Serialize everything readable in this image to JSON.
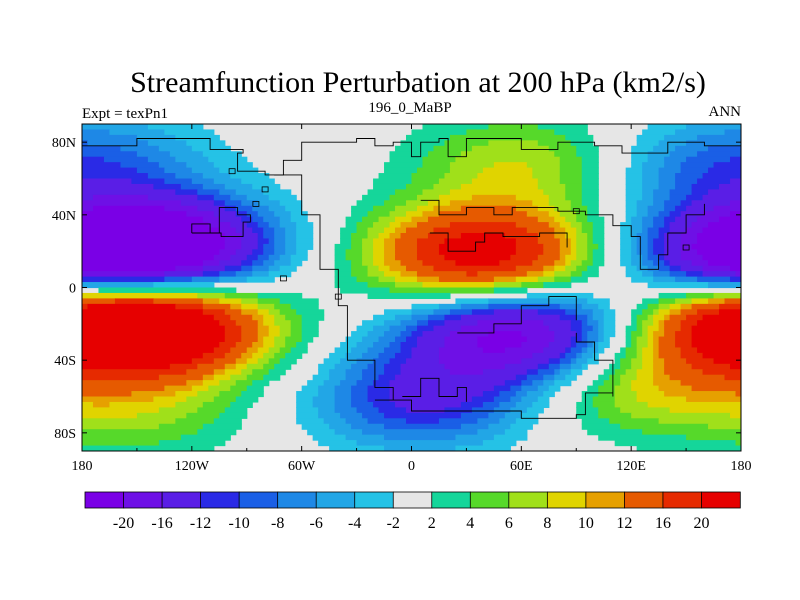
{
  "title": "Streamfunction Perturbation at 200 hPa (km2/s)",
  "subtitle_left": "Expt = texPn1",
  "subtitle_center": "196_0_MaBP",
  "subtitle_right": "ANN",
  "map": {
    "projection": "cylindrical-equidistant",
    "lon_range": [
      -180,
      180
    ],
    "lat_range": [
      -90,
      90
    ],
    "lon_ticks": [
      {
        "value": -180,
        "label": "180"
      },
      {
        "value": -120,
        "label": "120W"
      },
      {
        "value": -60,
        "label": "60W"
      },
      {
        "value": 0,
        "label": "0"
      },
      {
        "value": 60,
        "label": "60E"
      },
      {
        "value": 120,
        "label": "120E"
      },
      {
        "value": 180,
        "label": "180"
      }
    ],
    "lat_ticks": [
      {
        "value": 80,
        "label": "80N"
      },
      {
        "value": 40,
        "label": "40N"
      },
      {
        "value": 0,
        "label": "0"
      },
      {
        "value": -40,
        "label": "40S"
      },
      {
        "value": -80,
        "label": "80S"
      }
    ],
    "missing_color": "#e6e6e6"
  },
  "colorbar": {
    "labels": [
      "-20",
      "-16",
      "-12",
      "-10",
      "-8",
      "-6",
      "-4",
      "-2",
      "2",
      "4",
      "6",
      "8",
      "10",
      "12",
      "16",
      "20"
    ],
    "colors": [
      "#7a00e6",
      "#6e10e6",
      "#5a1ee6",
      "#2a2ae6",
      "#1a5fe6",
      "#1e88e6",
      "#22a6e6",
      "#25c2e6",
      "#e6e6e6",
      "#15d69a",
      "#56d92a",
      "#a0e01a",
      "#e0d400",
      "#e6a000",
      "#e65a00",
      "#e62a00",
      "#e60000"
    ]
  },
  "chart_data": {
    "type": "heatmap",
    "title": "Streamfunction Perturbation at 200 hPa (km2/s)",
    "xlabel": "",
    "ylabel": "",
    "x_range": [
      -180,
      180
    ],
    "y_range": [
      -90,
      90
    ],
    "levels": [
      -20,
      -16,
      -12,
      -10,
      -8,
      -6,
      -4,
      -2,
      2,
      4,
      6,
      8,
      10,
      12,
      16,
      20
    ],
    "features": [
      {
        "kind": "low",
        "lon": -135,
        "lat": 23,
        "peak": -24
      },
      {
        "kind": "high",
        "lon": 38,
        "lat": 18,
        "peak": 24
      },
      {
        "kind": "high",
        "lon": -135,
        "lat": -22,
        "peak": 24
      },
      {
        "kind": "low",
        "lon": 55,
        "lat": -25,
        "peak": -22
      },
      {
        "kind": "low",
        "lon": -165,
        "lat": 70,
        "peak": -6
      },
      {
        "kind": "high",
        "lon": 60,
        "lat": 68,
        "peak": 8
      },
      {
        "kind": "low",
        "lon": 150,
        "lat": 65,
        "peak": -5
      },
      {
        "kind": "low",
        "lon": 180,
        "lat": 17,
        "peak": -20
      },
      {
        "kind": "high",
        "lon": 180,
        "lat": -20,
        "peak": 20
      },
      {
        "kind": "low",
        "lon": 5,
        "lat": -62,
        "peak": -12
      },
      {
        "kind": "high",
        "lon": 125,
        "lat": -55,
        "peak": 8
      },
      {
        "kind": "high",
        "lon": -150,
        "lat": -68,
        "peak": 6
      }
    ]
  }
}
